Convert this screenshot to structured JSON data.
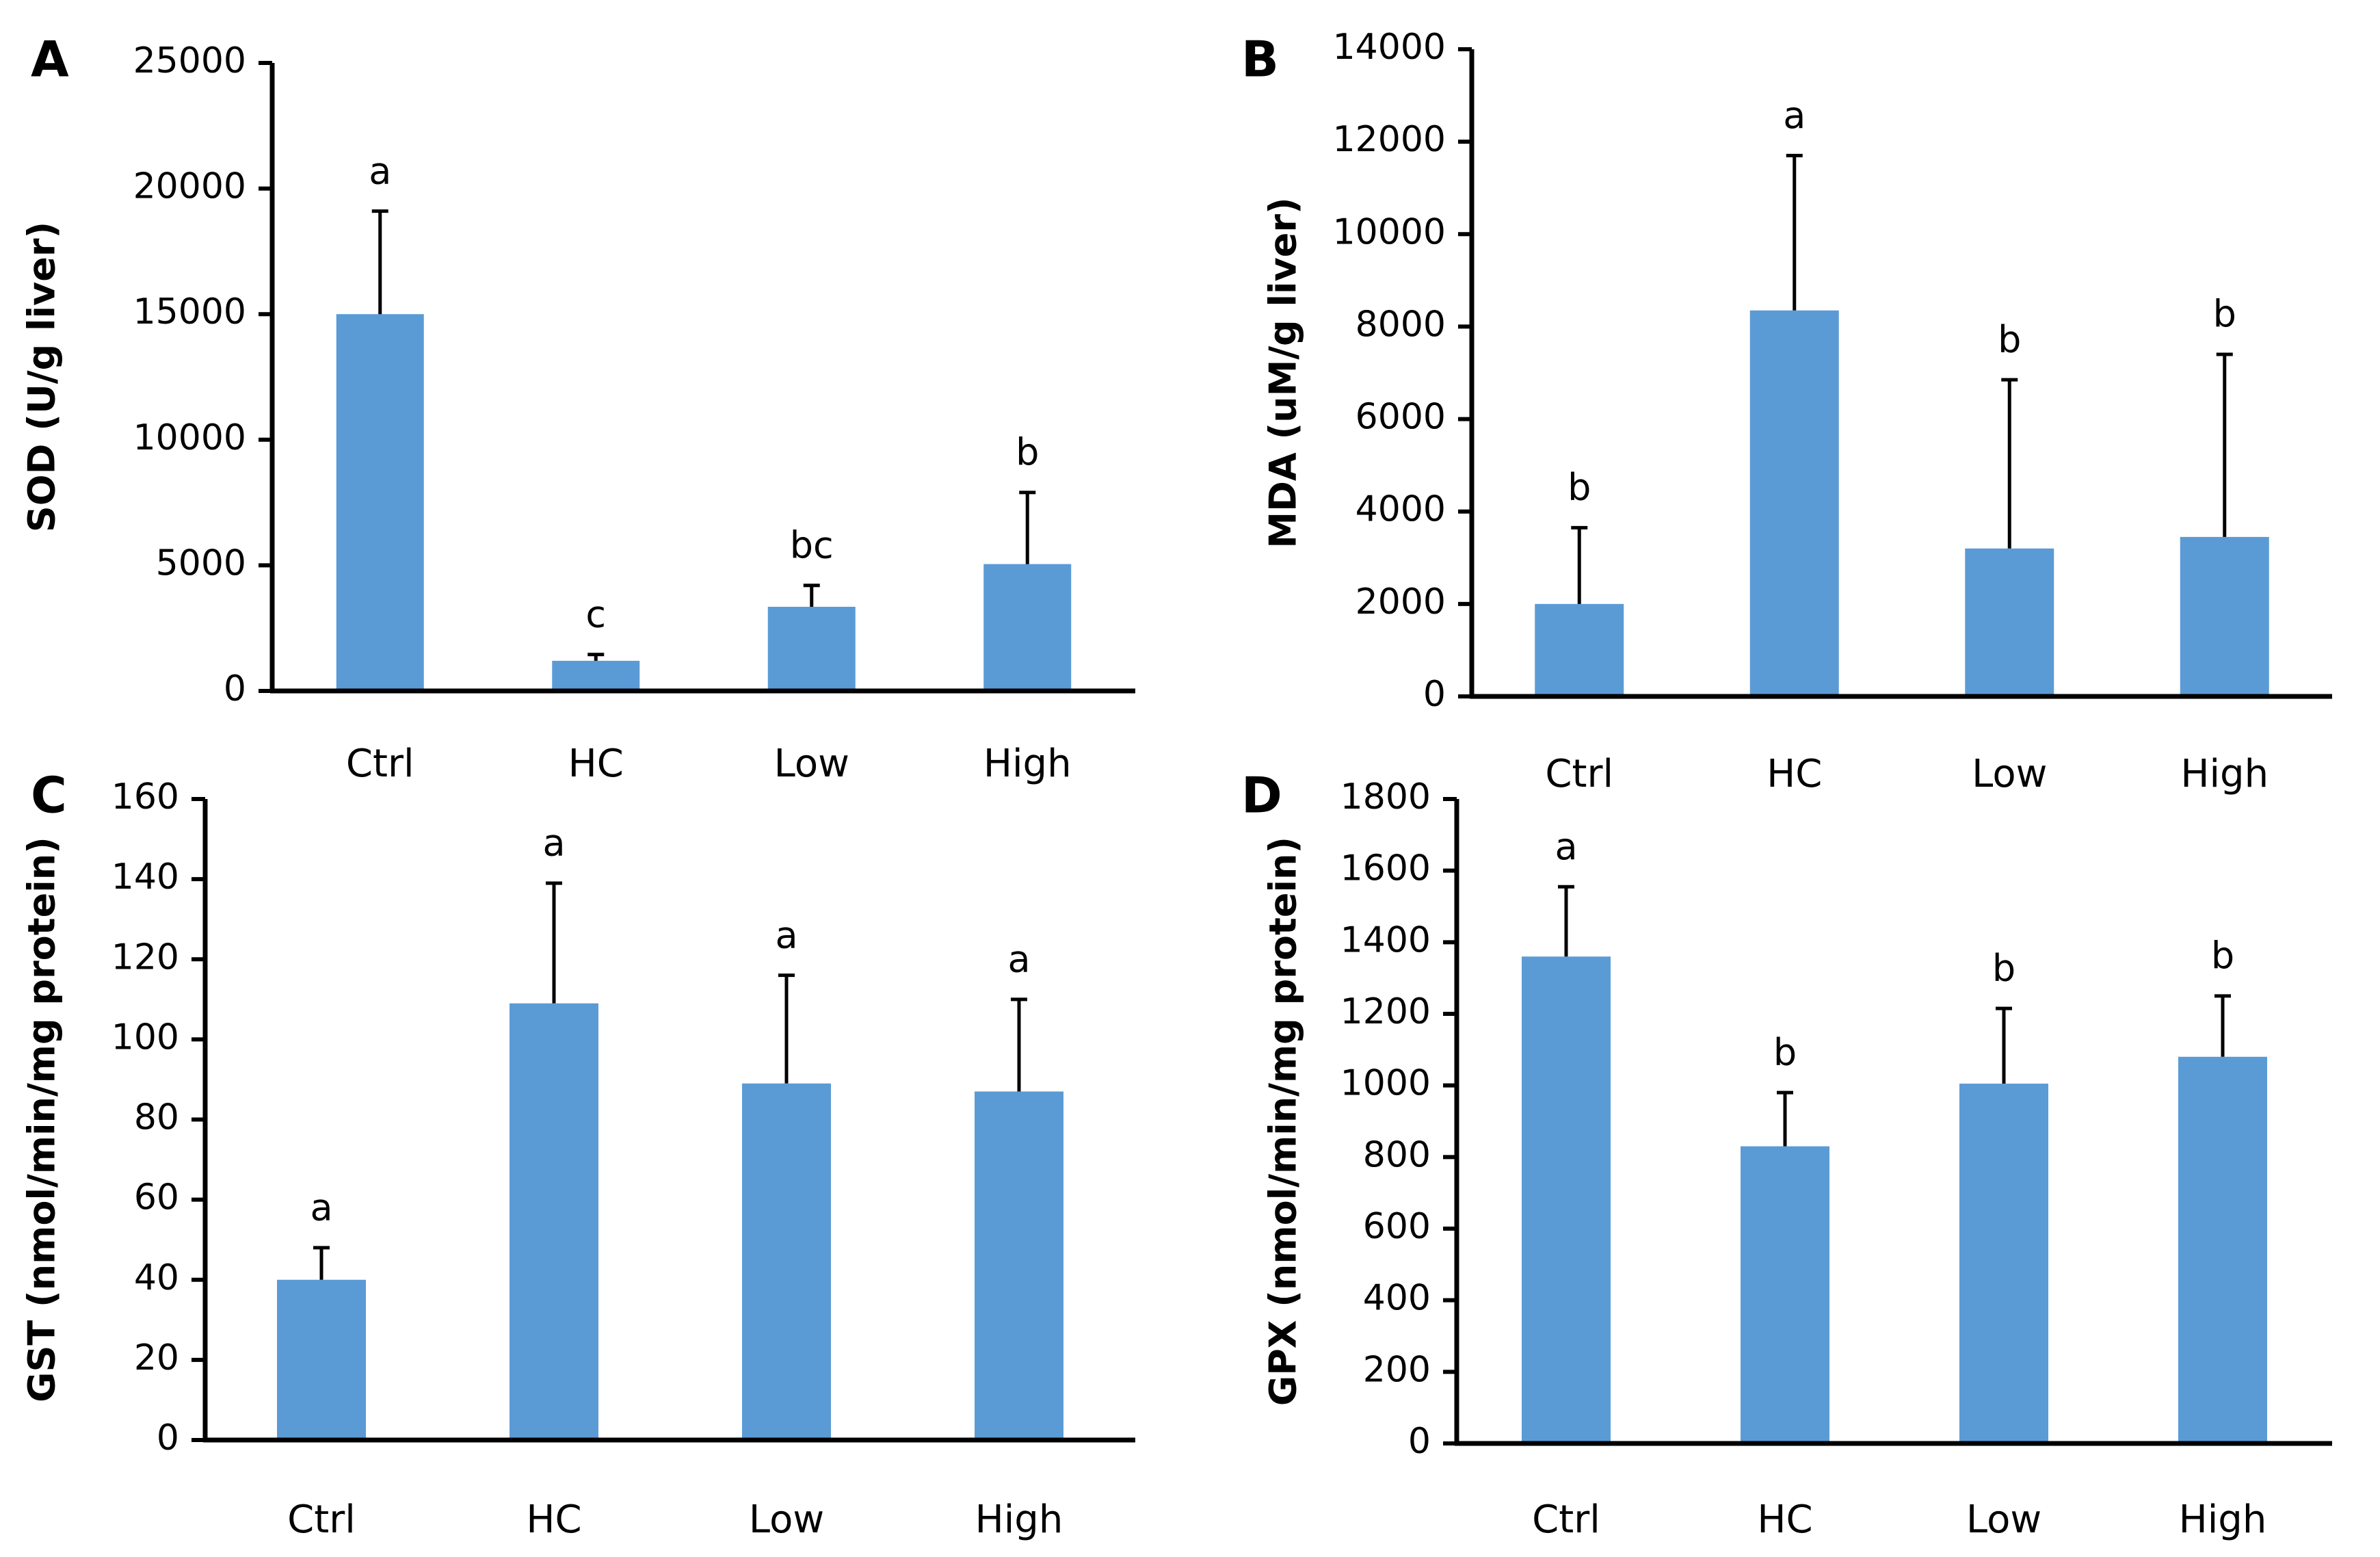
{
  "chart_data": [
    {
      "panel": "A",
      "type": "bar",
      "categories": [
        "Ctrl",
        "HC",
        "Low",
        "High"
      ],
      "values": [
        15000,
        1200,
        3350,
        5050
      ],
      "errors": [
        4100,
        250,
        850,
        2850
      ],
      "labels": [
        "a",
        "c",
        "bc",
        "b"
      ],
      "ylabel": "SOD (U/g liver)",
      "ylim": [
        0,
        25000
      ],
      "yticks": [
        0,
        5000,
        10000,
        15000,
        20000,
        25000
      ],
      "color": "#5b9bd5"
    },
    {
      "panel": "B",
      "type": "bar",
      "categories": [
        "Ctrl",
        "HC",
        "Low",
        "High"
      ],
      "values": [
        2000,
        8350,
        3200,
        3450
      ],
      "errors": [
        1650,
        3350,
        3650,
        3950
      ],
      "labels": [
        "b",
        "a",
        "b",
        "b"
      ],
      "ylabel": "MDA (uM/g liver)",
      "ylim": [
        0,
        14000
      ],
      "yticks": [
        0,
        2000,
        4000,
        6000,
        8000,
        10000,
        12000,
        14000
      ],
      "color": "#5b9bd5"
    },
    {
      "panel": "C",
      "type": "bar",
      "categories": [
        "Ctrl",
        "HC",
        "Low",
        "High"
      ],
      "values": [
        40,
        109,
        89,
        87
      ],
      "errors": [
        8,
        30,
        27,
        23
      ],
      "labels": [
        "a",
        "a",
        "a",
        "a"
      ],
      "ylabel": "GST (nmol/min/mg protein)",
      "ylim": [
        0,
        160
      ],
      "yticks": [
        0,
        20,
        40,
        60,
        80,
        100,
        120,
        140,
        160
      ],
      "color": "#5b9bd5"
    },
    {
      "panel": "D",
      "type": "bar",
      "categories": [
        "Ctrl",
        "HC",
        "Low",
        "High"
      ],
      "values": [
        1360,
        830,
        1005,
        1080
      ],
      "errors": [
        195,
        150,
        210,
        170
      ],
      "labels": [
        "a",
        "b",
        "b",
        "b"
      ],
      "ylabel": "GPX (nmol/min/mg protein)",
      "ylim": [
        0,
        1800
      ],
      "yticks": [
        0,
        200,
        400,
        600,
        800,
        1000,
        1200,
        1400,
        1600,
        1800
      ],
      "color": "#5b9bd5"
    }
  ]
}
